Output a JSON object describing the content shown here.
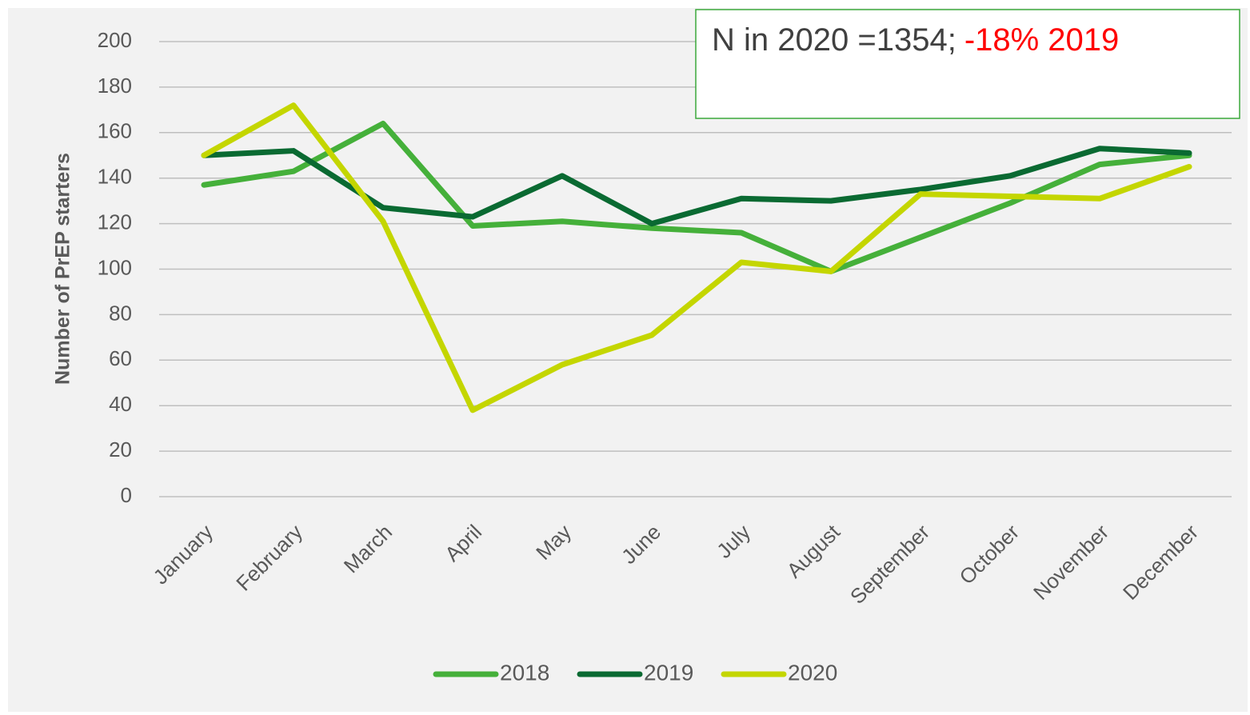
{
  "chart_data": {
    "type": "line",
    "y_label": "Number of PrEP starters",
    "categories": [
      "January",
      "February",
      "March",
      "April",
      "May",
      "June",
      "July",
      "August",
      "September",
      "October",
      "November",
      "December"
    ],
    "series": [
      {
        "name": "2018",
        "color": "#45b03a",
        "values": [
          137,
          143,
          164,
          119,
          121,
          118,
          116,
          99,
          114,
          129,
          146,
          150
        ]
      },
      {
        "name": "2019",
        "color": "#0a6a32",
        "values": [
          150,
          152,
          127,
          123,
          141,
          120,
          131,
          130,
          135,
          141,
          153,
          151
        ]
      },
      {
        "name": "2020",
        "color": "#c4d600",
        "values": [
          150,
          172,
          121,
          38,
          58,
          71,
          103,
          99,
          133,
          132,
          131,
          145
        ]
      }
    ],
    "ylim": [
      0,
      200
    ],
    "yticks": [
      0,
      20,
      40,
      60,
      80,
      100,
      120,
      140,
      160,
      180,
      200
    ],
    "grid": true,
    "legend": "bottom",
    "annotation": {
      "text": "N in 2020 =1354;",
      "highlight": "-18% 2019",
      "highlight_color": "#ff0000",
      "border_color": "#3aa83a"
    }
  }
}
